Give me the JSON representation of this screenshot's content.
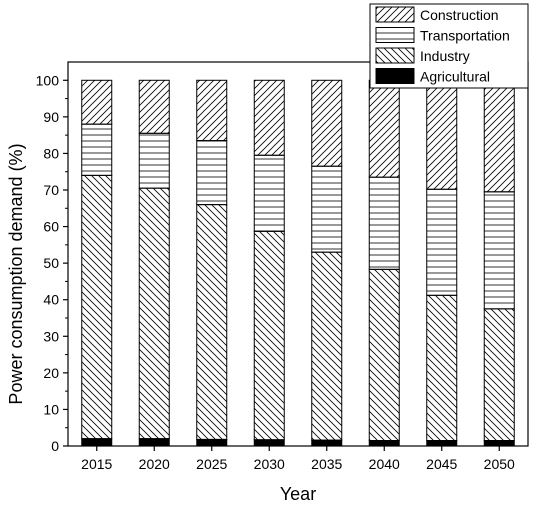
{
  "chart_data": {
    "type": "bar",
    "stacked": true,
    "xlabel": "Year",
    "ylabel": "Power consumption demand (%)",
    "ylim": [
      0,
      105
    ],
    "yticks": [
      0,
      10,
      20,
      30,
      40,
      50,
      60,
      70,
      80,
      90,
      100
    ],
    "categories": [
      "2015",
      "2020",
      "2025",
      "2030",
      "2035",
      "2040",
      "2045",
      "2050"
    ],
    "legend_placement": "top-right",
    "series": [
      {
        "name": "Agricultural",
        "pattern": "solid",
        "color": "#000000",
        "values": [
          2,
          2,
          1.8,
          1.7,
          1.6,
          1.5,
          1.5,
          1.5
        ]
      },
      {
        "name": "Industry",
        "pattern": "diagonal-back",
        "color": "#000000",
        "values": [
          72,
          68.5,
          64.2,
          57,
          51.4,
          46.8,
          39.7,
          36
        ]
      },
      {
        "name": "Transportation",
        "pattern": "horizontal",
        "color": "#000000",
        "values": [
          14,
          15,
          17.5,
          20.8,
          23.5,
          25.2,
          29,
          32
        ]
      },
      {
        "name": "Construction",
        "pattern": "diagonal-forward",
        "color": "#000000",
        "values": [
          12,
          14.5,
          16.5,
          20.5,
          23.5,
          26.5,
          29.8,
          30.5
        ]
      }
    ]
  }
}
